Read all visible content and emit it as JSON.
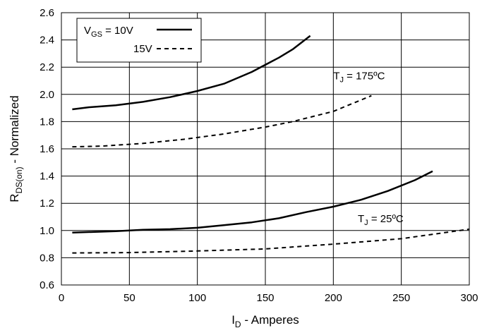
{
  "chart_data": {
    "type": "line",
    "xlabel": {
      "main": "I",
      "sub": "D",
      "rest": " - Amperes"
    },
    "ylabel": {
      "main": "R",
      "sub": "DS(on)",
      "rest": " - Normalized"
    },
    "xlim": [
      0,
      300
    ],
    "ylim": [
      0.6,
      2.6
    ],
    "xticks": [
      0,
      50,
      100,
      150,
      200,
      250,
      300
    ],
    "yticks": [
      0.6,
      0.8,
      1.0,
      1.2,
      1.4,
      1.6,
      1.8,
      2.0,
      2.2,
      2.4,
      2.6
    ],
    "xtick_labels": [
      "0",
      "50",
      "100",
      "150",
      "200",
      "250",
      "300"
    ],
    "ytick_labels": [
      "0.6",
      "0.8",
      "1.0",
      "1.2",
      "1.4",
      "1.6",
      "1.8",
      "2.0",
      "2.2",
      "2.4",
      "2.6"
    ],
    "grid": true,
    "legend_position": "top-left",
    "legend": [
      {
        "main": "V",
        "sub": "GS",
        "rest": " = 10V",
        "style": "solid"
      },
      {
        "main": "",
        "sub": "",
        "rest": "15V",
        "style": "dashed"
      }
    ],
    "annotations": [
      {
        "id": "tj-175",
        "main": "T",
        "sub": "J",
        "rest": " = 175ºC",
        "x": 200,
        "y": 2.11
      },
      {
        "id": "tj-25",
        "main": "T",
        "sub": "J",
        "rest": " = 25ºC",
        "x": 218,
        "y": 1.06
      }
    ],
    "series": [
      {
        "style": "solid",
        "x": [
          8,
          20,
          40,
          60,
          80,
          100,
          120,
          140,
          160,
          170,
          183
        ],
        "y": [
          1.89,
          1.905,
          1.92,
          1.945,
          1.98,
          2.025,
          2.08,
          2.165,
          2.27,
          2.33,
          2.43
        ]
      },
      {
        "style": "dashed",
        "x": [
          8,
          30,
          60,
          90,
          120,
          150,
          170,
          200,
          228
        ],
        "y": [
          1.615,
          1.62,
          1.64,
          1.67,
          1.71,
          1.76,
          1.8,
          1.875,
          1.99
        ]
      },
      {
        "style": "solid",
        "x": [
          8,
          40,
          60,
          80,
          100,
          120,
          140,
          160,
          180,
          200,
          220,
          240,
          260,
          273
        ],
        "y": [
          0.985,
          0.995,
          1.005,
          1.01,
          1.02,
          1.04,
          1.06,
          1.09,
          1.135,
          1.175,
          1.225,
          1.29,
          1.37,
          1.435
        ]
      },
      {
        "style": "dashed",
        "x": [
          8,
          50,
          100,
          150,
          200,
          250,
          300
        ],
        "y": [
          0.835,
          0.838,
          0.85,
          0.865,
          0.9,
          0.94,
          1.01
        ]
      }
    ]
  }
}
